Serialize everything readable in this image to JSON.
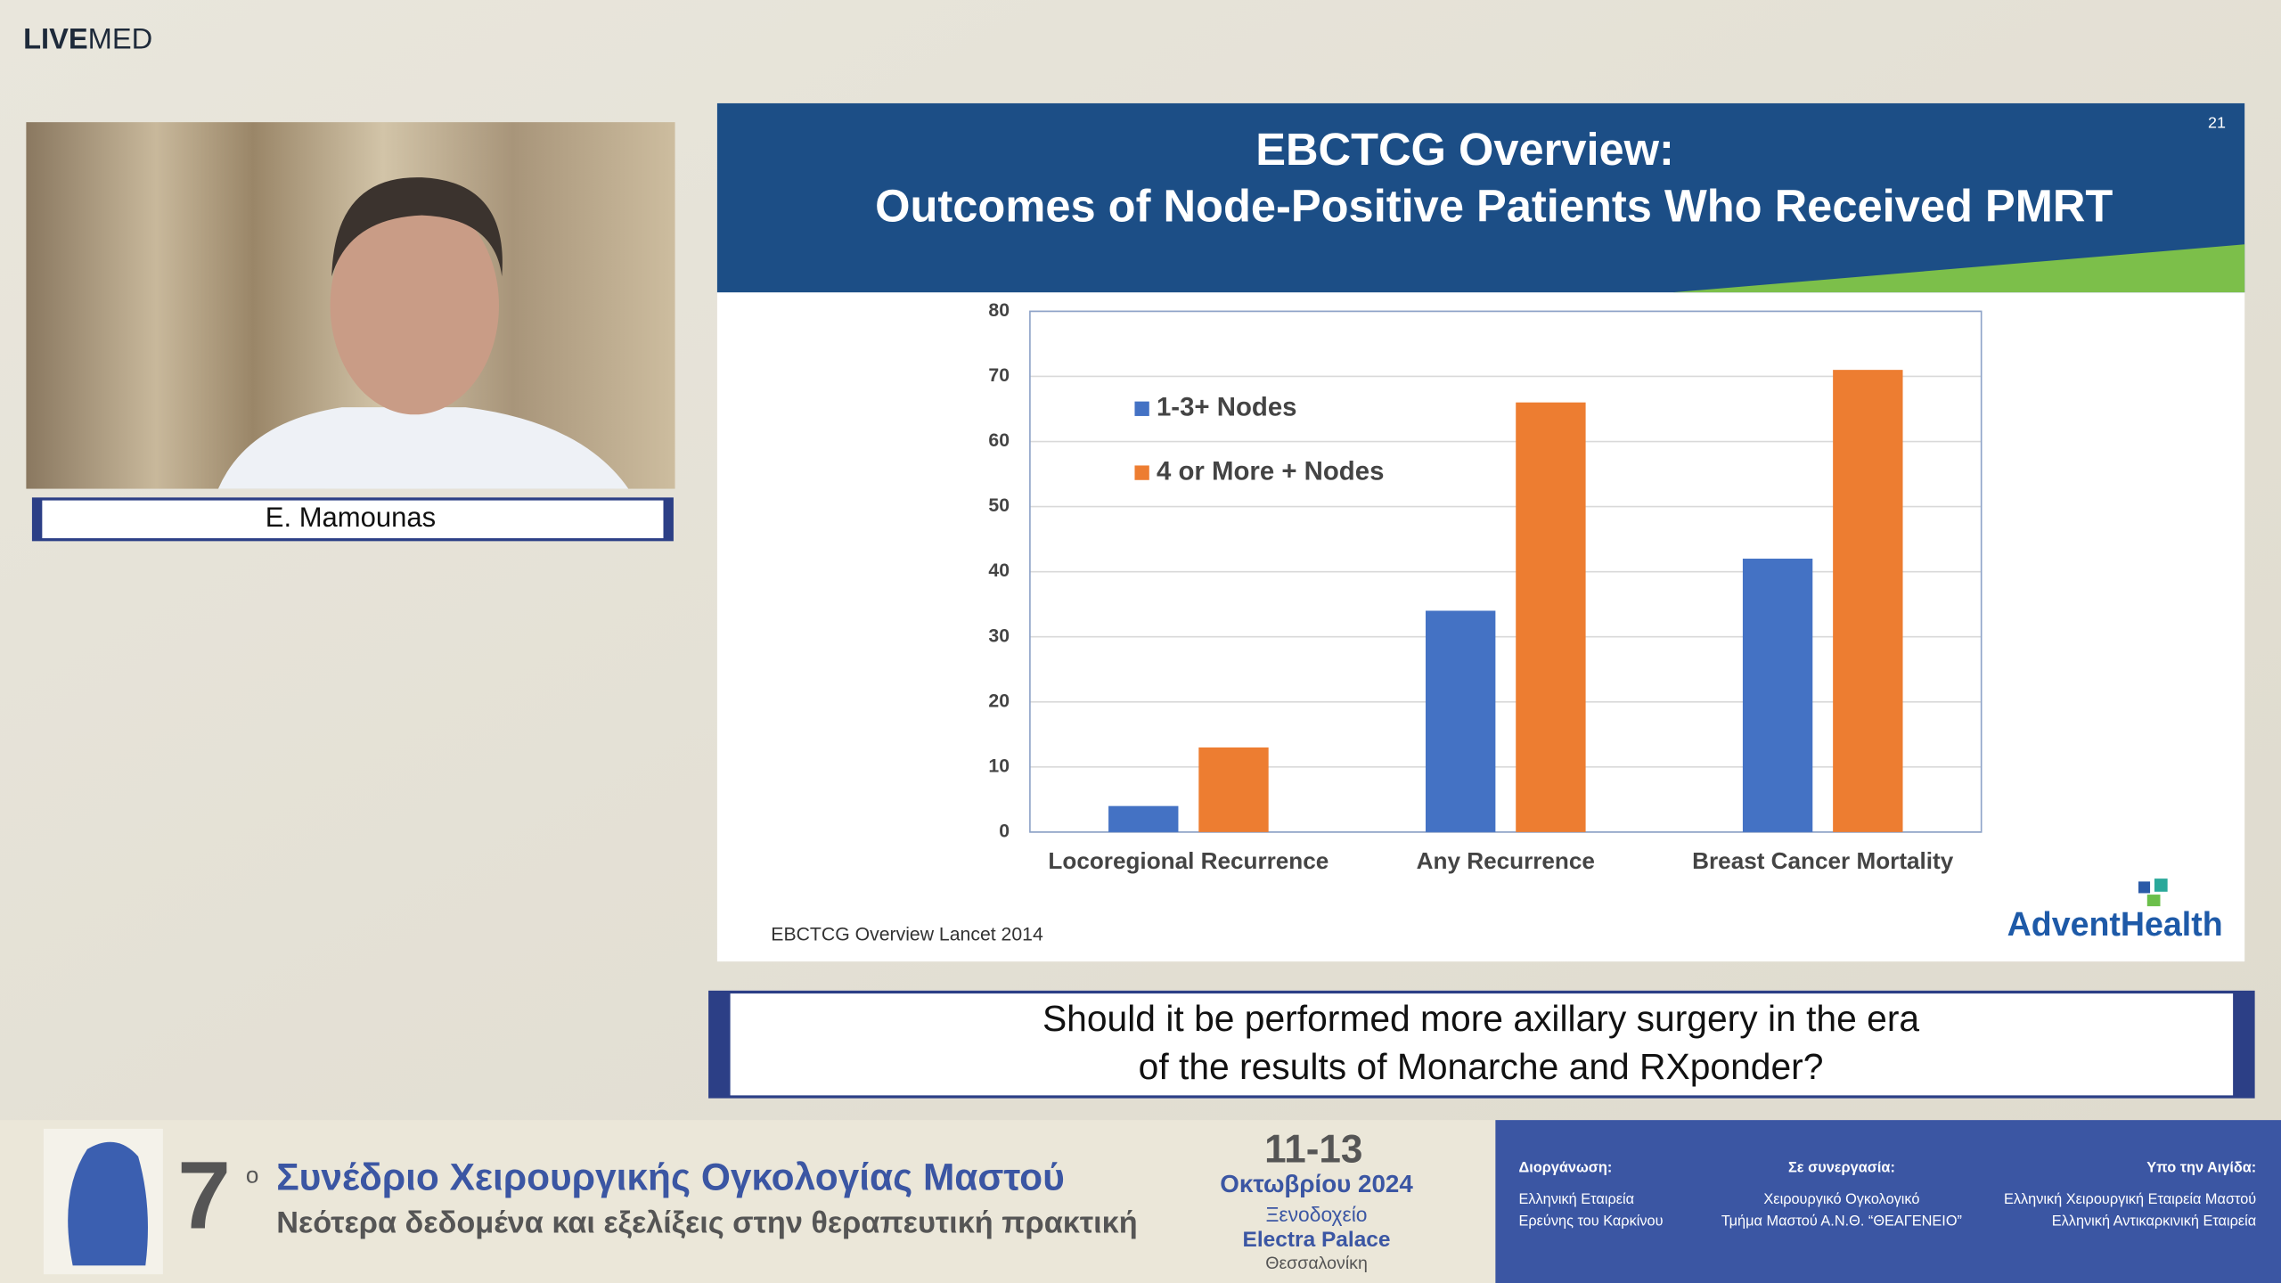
{
  "logo": {
    "bold": "LIVE",
    "light": "MED"
  },
  "speaker": {
    "name": "E. Mamounas"
  },
  "slide": {
    "title_lines": [
      "EBCTCG Overview:",
      "Outcomes of Node-Positive Patients Who Received PMRT"
    ],
    "number": "21",
    "source": "EBCTCG Overview Lancet  2014",
    "brand": "AdventHealth"
  },
  "caption": {
    "lines": [
      "Should it be performed more axillary surgery in the era",
      "of the results of Monarche and RXponder?"
    ]
  },
  "banner": {
    "edition": "7",
    "edition_suffix": "ο",
    "title": "Συνέδριο Χειρουργικής Ογκολογίας Μαστού",
    "subtitle": "Νεότερα δεδομένα και εξελίξεις στην θεραπευτική πρακτική",
    "dates": "11-13",
    "month": "Οκτωβρίου 2024",
    "venue_lines": [
      "Ξενοδοχείο",
      "Electra Palace",
      "Θεσσαλονίκη"
    ],
    "partners": [
      {
        "heading": "Διοργάνωση:",
        "lines": [
          "Ελληνική Εταιρεία",
          "Ερεύνης του Καρκίνου"
        ]
      },
      {
        "heading": "Σε συνεργασία:",
        "lines": [
          "Χειρουργικό Ογκολογικό",
          "Τμήμα Μαστού Α.Ν.Θ. “ΘΕΑΓΕΝΕΙΟ”"
        ]
      },
      {
        "heading": "Υπο την Αιγίδα:",
        "lines": [
          "Ελληνική Χειρουργική Εταιρεία Μαστού",
          "Ελληνική Αντικαρκινική Εταιρεία"
        ]
      }
    ]
  },
  "chart_data": {
    "type": "bar",
    "categories": [
      "Locoregional Recurrence",
      "Any Recurrence",
      "Breast Cancer Mortality"
    ],
    "series": [
      {
        "name": "1-3+ Nodes",
        "color": "#4472c4",
        "values": [
          4,
          34,
          42
        ]
      },
      {
        "name": "4 or More + Nodes",
        "color": "#ed7d31",
        "values": [
          13,
          66,
          71
        ]
      }
    ],
    "ylim": [
      0,
      80
    ],
    "yticks": [
      0,
      10,
      20,
      30,
      40,
      50,
      60,
      70,
      80
    ],
    "grid": true,
    "legend": "upper-left"
  }
}
